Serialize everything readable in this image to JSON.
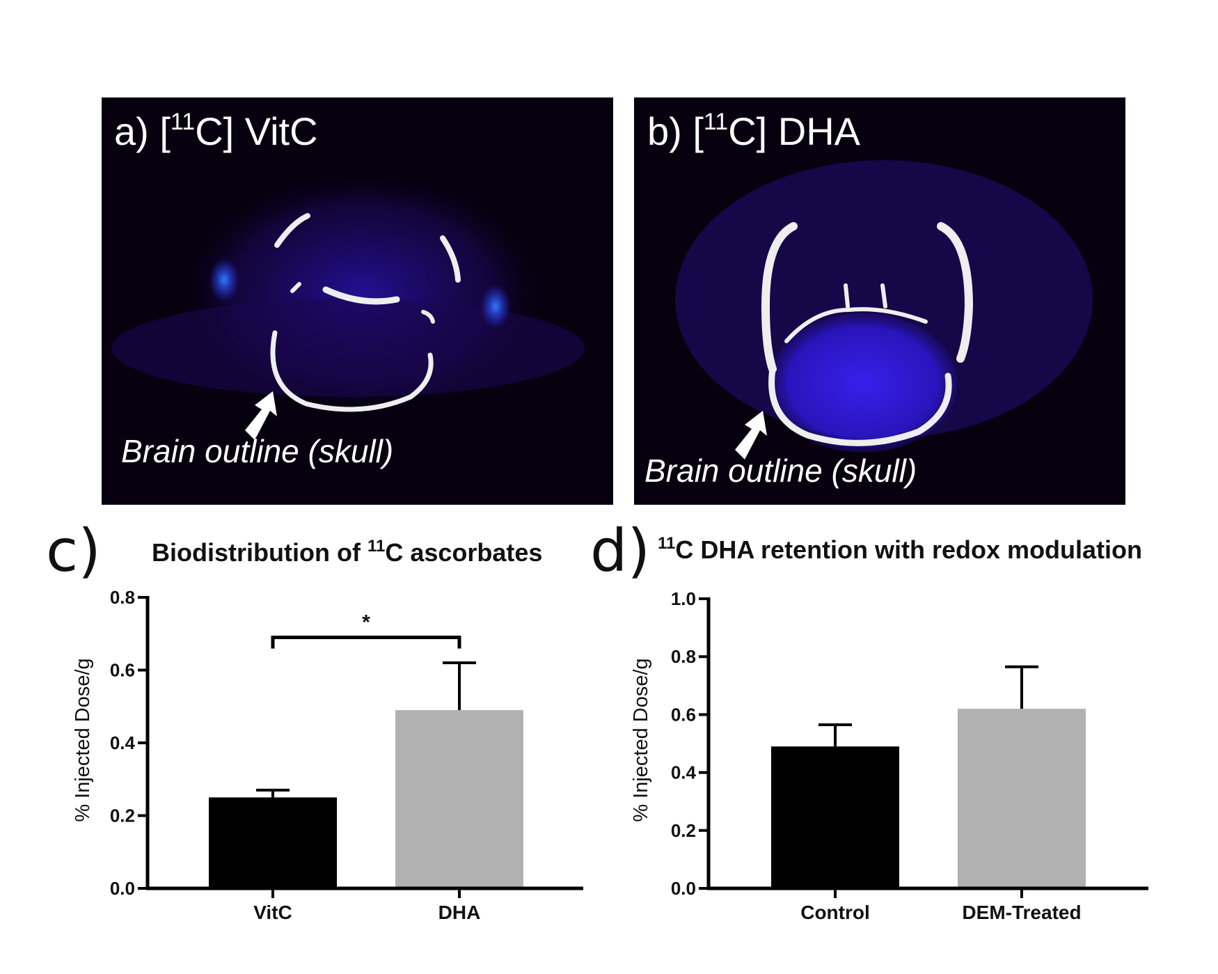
{
  "panels": {
    "a": {
      "label_prefix": "a) [",
      "isotope_mass": "11",
      "label_suffix": "C] VitC",
      "caption": "Brain outline (skull)",
      "image": "PET scan, axial slice (VitC)"
    },
    "b": {
      "label_prefix": "b) [",
      "isotope_mass": "11",
      "label_suffix": "C] DHA",
      "caption": "Brain outline (skull)",
      "image": "PET scan, axial slice (DHA)"
    }
  },
  "colors": {
    "bar_dark": "#000000",
    "bar_light": "#b1b1b1",
    "pet_background": "#06000f",
    "pet_signal": "#3a1cff"
  },
  "chart_data": [
    {
      "panel_letter": "c)",
      "type": "bar",
      "title_prefix": "Biodistribution of ",
      "title_superscript": "11",
      "title_suffix": "C ascorbates",
      "ylabel": "% Injected Dose/g",
      "xlabel": "",
      "categories": [
        "VitC",
        "DHA"
      ],
      "values": [
        0.25,
        0.49
      ],
      "errors": [
        0.02,
        0.13
      ],
      "ylim": [
        0,
        0.8
      ],
      "yticks": [
        "0.0",
        "0.2",
        "0.4",
        "0.6",
        "0.8"
      ],
      "significance": {
        "label": "*",
        "between": [
          "VitC",
          "DHA"
        ],
        "y": 0.69
      },
      "grid": false
    },
    {
      "panel_letter": "d)",
      "type": "bar",
      "title_prefix": "",
      "title_superscript": "11",
      "title_suffix": "C DHA retention with redox modulation",
      "ylabel": "% Injected Dose/g",
      "xlabel": "",
      "categories": [
        "Control",
        "DEM-Treated"
      ],
      "values": [
        0.49,
        0.62
      ],
      "errors": [
        0.075,
        0.145
      ],
      "ylim": [
        0,
        1.0
      ],
      "yticks": [
        "0.0",
        "0.2",
        "0.4",
        "0.6",
        "0.8",
        "1.0"
      ],
      "grid": false
    }
  ]
}
